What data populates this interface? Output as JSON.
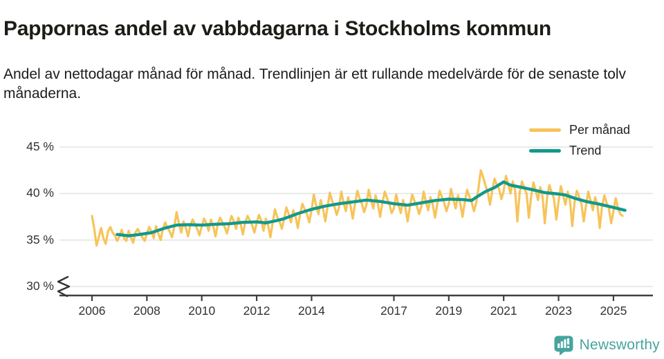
{
  "header": {
    "title": "Pappornas andel av vabbdagarna i Stockholms kommun",
    "subtitle": "Andel av nettodagar månad för månad. Trendlinjen är ett rullande medelvärde för de senaste tolv månaderna."
  },
  "branding": {
    "logo_text": "Newsworthy",
    "logo_color": "#46a49e"
  },
  "chart_data": {
    "type": "line",
    "unit": "%",
    "grid": "horizontal",
    "legend_position": "top-right",
    "colors": {
      "background": "#ffffff",
      "gridline": "#e4e4e4",
      "axis": "#3f3f3f",
      "tick_text": "#333333"
    },
    "y_axis": {
      "ticks": [
        45,
        40,
        35,
        30
      ],
      "labels": [
        "45 %",
        "40 %",
        "35 %",
        "30 %"
      ],
      "range_shown": [
        30,
        45
      ],
      "axis_break": true
    },
    "x_axis": {
      "ticks": [
        2006,
        2008,
        2010,
        2012,
        2014,
        2017,
        2019,
        2021,
        2023,
        2025
      ],
      "labels": [
        "2006",
        "2008",
        "2010",
        "2012",
        "2014",
        "2017",
        "2019",
        "2021",
        "2023",
        "2025"
      ],
      "range": [
        2005.8,
        2025.6
      ]
    },
    "series": [
      {
        "name": "Per månad",
        "color": "#f7c45a",
        "frequency": "monthly",
        "start": "2006-01",
        "end": "2025-05",
        "values": [
          37.6,
          36.2,
          34.4,
          35.3,
          36.3,
          35.2,
          34.6,
          35.9,
          36.4,
          35.8,
          35.5,
          34.9,
          35.4,
          36.1,
          35.2,
          34.9,
          36.0,
          35.3,
          34.7,
          35.8,
          36.2,
          35.7,
          35.3,
          34.9,
          35.7,
          36.4,
          35.9,
          35.2,
          36.5,
          35.7,
          35.0,
          36.2,
          36.9,
          36.3,
          35.9,
          35.3,
          36.4,
          38.0,
          36.8,
          35.8,
          37.0,
          36.3,
          35.4,
          36.6,
          37.2,
          36.7,
          36.2,
          35.5,
          36.5,
          37.3,
          36.8,
          36.0,
          37.2,
          36.5,
          35.4,
          36.7,
          37.4,
          36.9,
          36.4,
          35.7,
          36.7,
          37.6,
          37.0,
          36.2,
          37.4,
          36.7,
          35.6,
          36.9,
          37.6,
          37.1,
          36.6,
          35.8,
          36.8,
          37.7,
          37.1,
          36.0,
          37.3,
          36.6,
          35.3,
          36.8,
          38.3,
          37.5,
          37.0,
          36.2,
          37.3,
          38.5,
          37.8,
          36.9,
          38.2,
          37.5,
          36.3,
          37.8,
          38.9,
          38.3,
          37.8,
          36.9,
          38.2,
          39.9,
          38.7,
          37.8,
          39.3,
          38.4,
          37.0,
          38.6,
          40.1,
          39.2,
          38.6,
          37.7,
          38.5,
          40.2,
          39.0,
          38.1,
          39.6,
          38.7,
          37.3,
          38.9,
          40.3,
          39.5,
          38.9,
          38.0,
          38.8,
          40.4,
          39.3,
          38.4,
          39.8,
          38.9,
          37.5,
          39.0,
          40.2,
          39.5,
          38.9,
          37.9,
          38.4,
          39.9,
          38.8,
          37.9,
          39.3,
          38.5,
          37.0,
          38.6,
          39.9,
          39.2,
          38.7,
          37.8,
          38.6,
          40.2,
          39.1,
          38.2,
          39.6,
          38.8,
          37.4,
          38.9,
          40.3,
          39.6,
          39.0,
          38.1,
          38.9,
          40.5,
          39.4,
          38.4,
          39.8,
          39.0,
          37.5,
          39.1,
          40.4,
          39.7,
          39.1,
          38.1,
          39.0,
          40.6,
          42.5,
          41.8,
          40.9,
          40.2,
          38.8,
          40.3,
          41.6,
          40.9,
          40.5,
          39.4,
          40.3,
          41.9,
          41.0,
          40.0,
          41.3,
          40.4,
          37.0,
          40.1,
          41.3,
          40.6,
          40.0,
          37.4,
          39.7,
          41.2,
          40.3,
          39.3,
          40.7,
          39.7,
          36.8,
          39.6,
          40.9,
          40.1,
          39.5,
          37.2,
          39.2,
          40.8,
          39.8,
          38.8,
          40.2,
          39.2,
          36.5,
          39.1,
          40.3,
          39.6,
          38.9,
          37.0,
          38.7,
          40.2,
          39.2,
          38.2,
          39.6,
          38.7,
          36.3,
          38.6,
          39.8,
          39.0,
          38.4,
          36.8,
          38.1,
          39.5,
          38.4,
          37.8,
          37.6
        ]
      },
      {
        "name": "Trend",
        "color": "#11998d",
        "points": [
          [
            2006.92,
            35.6
          ],
          [
            2007.33,
            35.45
          ],
          [
            2007.75,
            35.6
          ],
          [
            2008.17,
            35.8
          ],
          [
            2008.67,
            36.3
          ],
          [
            2009.08,
            36.6
          ],
          [
            2009.5,
            36.65
          ],
          [
            2010.0,
            36.6
          ],
          [
            2010.5,
            36.7
          ],
          [
            2011.0,
            36.75
          ],
          [
            2011.5,
            36.9
          ],
          [
            2012.0,
            36.95
          ],
          [
            2012.33,
            36.85
          ],
          [
            2012.75,
            37.1
          ],
          [
            2013.0,
            37.3
          ],
          [
            2013.5,
            37.85
          ],
          [
            2014.0,
            38.3
          ],
          [
            2014.5,
            38.65
          ],
          [
            2015.0,
            38.9
          ],
          [
            2015.5,
            39.1
          ],
          [
            2016.0,
            39.3
          ],
          [
            2016.5,
            39.15
          ],
          [
            2017.0,
            38.9
          ],
          [
            2017.5,
            38.75
          ],
          [
            2018.0,
            39.0
          ],
          [
            2018.5,
            39.25
          ],
          [
            2019.0,
            39.4
          ],
          [
            2019.5,
            39.35
          ],
          [
            2019.83,
            39.25
          ],
          [
            2020.0,
            39.6
          ],
          [
            2020.33,
            40.2
          ],
          [
            2020.67,
            40.65
          ],
          [
            2021.0,
            41.25
          ],
          [
            2021.25,
            40.9
          ],
          [
            2021.5,
            40.75
          ],
          [
            2022.0,
            40.45
          ],
          [
            2022.5,
            40.1
          ],
          [
            2023.0,
            39.95
          ],
          [
            2023.25,
            39.85
          ],
          [
            2023.58,
            39.5
          ],
          [
            2024.0,
            39.15
          ],
          [
            2024.5,
            38.85
          ],
          [
            2025.0,
            38.5
          ],
          [
            2025.42,
            38.2
          ]
        ]
      }
    ]
  }
}
